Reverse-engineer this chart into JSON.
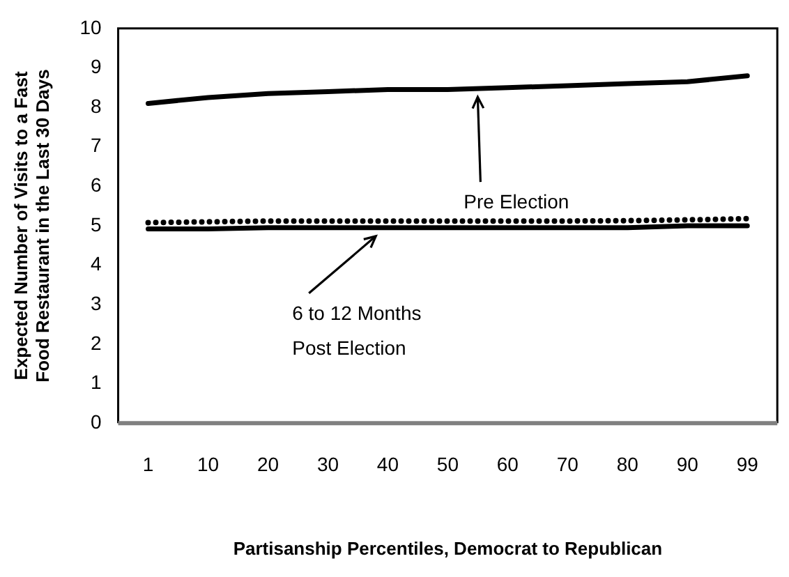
{
  "chart_data": {
    "type": "line",
    "xlabel": "Partisanship Percentiles, Democrat to Republican",
    "ylabel": "Expected Number of Visits to a Fast Food Restaurant in the Last 30 Days",
    "categories": [
      "1",
      "10",
      "20",
      "30",
      "40",
      "50",
      "60",
      "70",
      "80",
      "90",
      "99"
    ],
    "ylim": [
      0,
      10
    ],
    "yticks": [
      0,
      1,
      2,
      3,
      4,
      5,
      6,
      7,
      8,
      9,
      10
    ],
    "grid": false,
    "legend": false,
    "marker": "none",
    "series": [
      {
        "name": "Pre Election",
        "color": "#000000",
        "line_style": "solid",
        "values": [
          8.1,
          8.25,
          8.35,
          8.4,
          8.45,
          8.45,
          8.5,
          8.55,
          8.6,
          8.65,
          8.8
        ]
      },
      {
        "color": "#000000",
        "line_style": "dotted",
        "values": [
          5.08,
          5.1,
          5.12,
          5.12,
          5.12,
          5.12,
          5.12,
          5.12,
          5.13,
          5.15,
          5.18
        ]
      },
      {
        "name": "6 to 12 Months Post Election",
        "color": "#000000",
        "line_style": "solid",
        "values": [
          4.92,
          4.92,
          4.95,
          4.95,
          4.95,
          4.95,
          4.95,
          4.95,
          4.95,
          5.0,
          5.0
        ]
      }
    ]
  }
}
